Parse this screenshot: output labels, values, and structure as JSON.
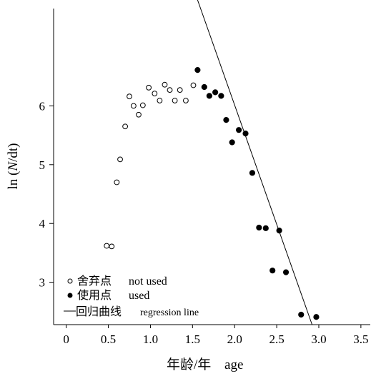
{
  "chart_data": {
    "type": "scatter",
    "xlabel": "年龄/年",
    "xlabel_en": "age",
    "ylabel": "ln (N/dt)",
    "xlim": [
      -0.15,
      3.62
    ],
    "ylim": [
      2.28,
      7.8
    ],
    "x_ticks": [
      {
        "value": 0,
        "label": "0"
      },
      {
        "value": 0.5,
        "label": "0.5"
      },
      {
        "value": 1.0,
        "label": "1.0"
      },
      {
        "value": 1.5,
        "label": "1.5"
      },
      {
        "value": 2.0,
        "label": "2.0"
      },
      {
        "value": 2.5,
        "label": "2.5"
      },
      {
        "value": 3.0,
        "label": "3.0"
      },
      {
        "value": 3.5,
        "label": "3.5"
      }
    ],
    "y_ticks": [
      {
        "value": 3,
        "label": "3"
      },
      {
        "value": 4,
        "label": "4"
      },
      {
        "value": 5,
        "label": "5"
      },
      {
        "value": 6,
        "label": "6"
      }
    ],
    "grid": false,
    "legend_position": "bottom-left",
    "series": [
      {
        "name": "舍弃点",
        "name_en": "not used",
        "marker": "open-circle",
        "points": [
          [
            0.48,
            3.62
          ],
          [
            0.54,
            3.61
          ],
          [
            0.6,
            4.7
          ],
          [
            0.64,
            5.09
          ],
          [
            0.7,
            5.65
          ],
          [
            0.75,
            6.16
          ],
          [
            0.8,
            6.0
          ],
          [
            0.86,
            5.85
          ],
          [
            0.91,
            6.01
          ],
          [
            0.98,
            6.31
          ],
          [
            1.05,
            6.21
          ],
          [
            1.11,
            6.09
          ],
          [
            1.17,
            6.36
          ],
          [
            1.23,
            6.27
          ],
          [
            1.29,
            6.09
          ],
          [
            1.35,
            6.27
          ],
          [
            1.42,
            6.09
          ],
          [
            1.51,
            6.35
          ]
        ]
      },
      {
        "name": "使用点",
        "name_en": "used",
        "marker": "filled-circle",
        "points": [
          [
            1.56,
            6.61
          ],
          [
            1.64,
            6.32
          ],
          [
            1.7,
            6.17
          ],
          [
            1.77,
            6.23
          ],
          [
            1.84,
            6.17
          ],
          [
            1.9,
            5.76
          ],
          [
            1.97,
            5.38
          ],
          [
            2.05,
            5.59
          ],
          [
            2.13,
            5.53
          ],
          [
            2.21,
            4.86
          ],
          [
            2.29,
            3.93
          ],
          [
            2.37,
            3.92
          ],
          [
            2.45,
            3.2
          ],
          [
            2.53,
            3.88
          ],
          [
            2.61,
            3.17
          ],
          [
            2.79,
            2.45
          ],
          [
            2.97,
            2.41
          ]
        ]
      }
    ],
    "regression_line": {
      "name": "回归曲线",
      "name_en": "regression line",
      "points": [
        [
          1.56,
          7.8
        ],
        [
          2.92,
          2.28
        ]
      ]
    }
  }
}
